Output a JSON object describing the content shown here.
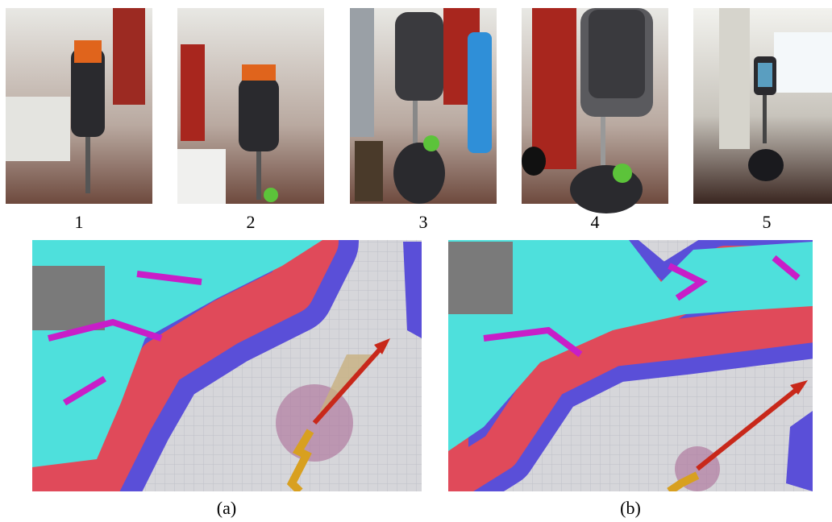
{
  "photos": [
    {
      "label": "1"
    },
    {
      "label": "2"
    },
    {
      "label": "3"
    },
    {
      "label": "4"
    },
    {
      "label": "5"
    }
  ],
  "panels": [
    {
      "label": "(a)"
    },
    {
      "label": "(b)"
    }
  ]
}
